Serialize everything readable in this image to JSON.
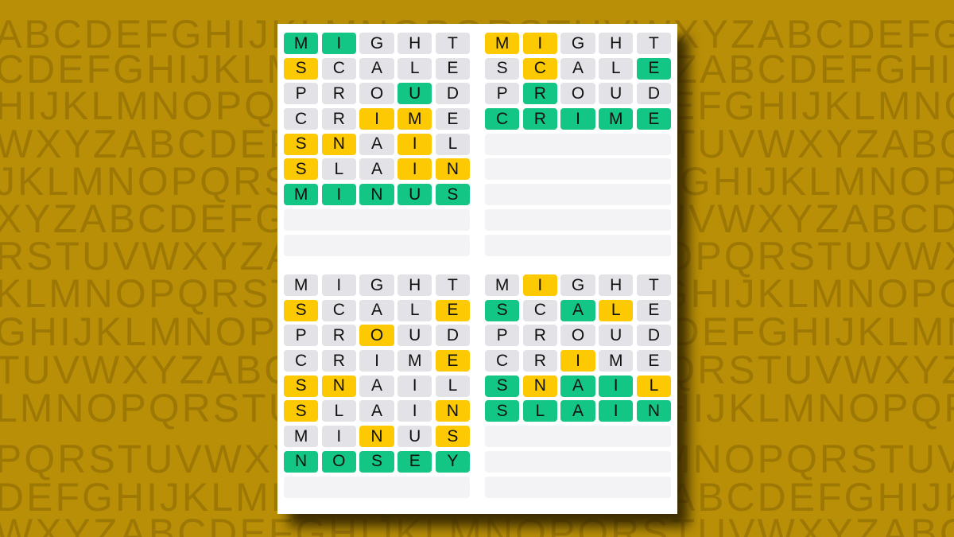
{
  "background": {
    "color": "#b98f07",
    "rows": [
      "ABCDEFGHIJKLMNOPQRSTUVWXYZABCDEFGH",
      "CDEFGHIJKLMNOPQRSTUVWXYZABCDEFGHIJ",
      "HIJKLMNOPQRSTUVWXYZABCDEFGHIJKLMNO",
      "WXYZABCDEFGHIJKLMNOPQRSTUVWXYZABCD",
      "JKLMNOPQRSTUVWXYZABCDEFGHIJKLMNOPQ",
      "XYZABCDEFGHIJKLMNOPQRSTUVWXYZABCDE",
      "RSTUVWXYZABCDEFGHIJKLMNOPQRSTUVWXY",
      "KLMNOPQRSTUVWXYZABCDEFGHIJKLMNOPQR",
      "GHIJKLMNOPQRSTUVWXYZABCDEFGHIJKLMN",
      "TUVWXYZABCDEFGHIJKLMNOPQRSTUVWXYZA",
      "LMNOPQRSTUVWXYZABCDEFGHIJKLMNOPQRS",
      "PQRSTUVWXYZABCDEFGHIJKLMNOPQRSTUVW",
      "DEFGHIJKLMNOPQRSTUVWXYZABCDEFGHIJK",
      "WXYZABCDEFGHIJKLMNOPQRSTUVWXYZABCD"
    ]
  },
  "colors": {
    "correct": "#14c686",
    "present": "#fcc902",
    "absent": "#e3e3e7",
    "empty": "#f3f3f5"
  },
  "legend_states": {
    "G": "correct",
    "Y": "present",
    "-": "absent"
  },
  "boards": [
    {
      "rows": [
        {
          "word": "MIGHT",
          "states": "GG---"
        },
        {
          "word": "SCALE",
          "states": "Y----"
        },
        {
          "word": "PROUD",
          "states": "---G-"
        },
        {
          "word": "CRIME",
          "states": "--YY-"
        },
        {
          "word": "SNAIL",
          "states": "YY-Y-"
        },
        {
          "word": "SLAIN",
          "states": "Y--YY"
        },
        {
          "word": "MINUS",
          "states": "GGGGG"
        },
        {
          "word": "",
          "states": ""
        },
        {
          "word": "",
          "states": ""
        }
      ]
    },
    {
      "rows": [
        {
          "word": "MIGHT",
          "states": "YY---"
        },
        {
          "word": "SCALE",
          "states": "-Y--G"
        },
        {
          "word": "PROUD",
          "states": "-G---"
        },
        {
          "word": "CRIME",
          "states": "GGGGG"
        },
        {
          "word": "",
          "states": ""
        },
        {
          "word": "",
          "states": ""
        },
        {
          "word": "",
          "states": ""
        },
        {
          "word": "",
          "states": ""
        },
        {
          "word": "",
          "states": ""
        }
      ]
    },
    {
      "rows": [
        {
          "word": "MIGHT",
          "states": "-----"
        },
        {
          "word": "SCALE",
          "states": "Y---Y"
        },
        {
          "word": "PROUD",
          "states": "--Y--"
        },
        {
          "word": "CRIME",
          "states": "----Y"
        },
        {
          "word": "SNAIL",
          "states": "YY---"
        },
        {
          "word": "SLAIN",
          "states": "Y---Y"
        },
        {
          "word": "MINUS",
          "states": "--Y-Y"
        },
        {
          "word": "NOSEY",
          "states": "GGGGG"
        },
        {
          "word": "",
          "states": ""
        }
      ]
    },
    {
      "rows": [
        {
          "word": "MIGHT",
          "states": "-Y---"
        },
        {
          "word": "SCALE",
          "states": "G-GY-"
        },
        {
          "word": "PROUD",
          "states": "-----"
        },
        {
          "word": "CRIME",
          "states": "--Y--"
        },
        {
          "word": "SNAIL",
          "states": "GYGGY"
        },
        {
          "word": "SLAIN",
          "states": "GGGGG"
        },
        {
          "word": "",
          "states": ""
        },
        {
          "word": "",
          "states": ""
        },
        {
          "word": "",
          "states": ""
        }
      ]
    }
  ]
}
